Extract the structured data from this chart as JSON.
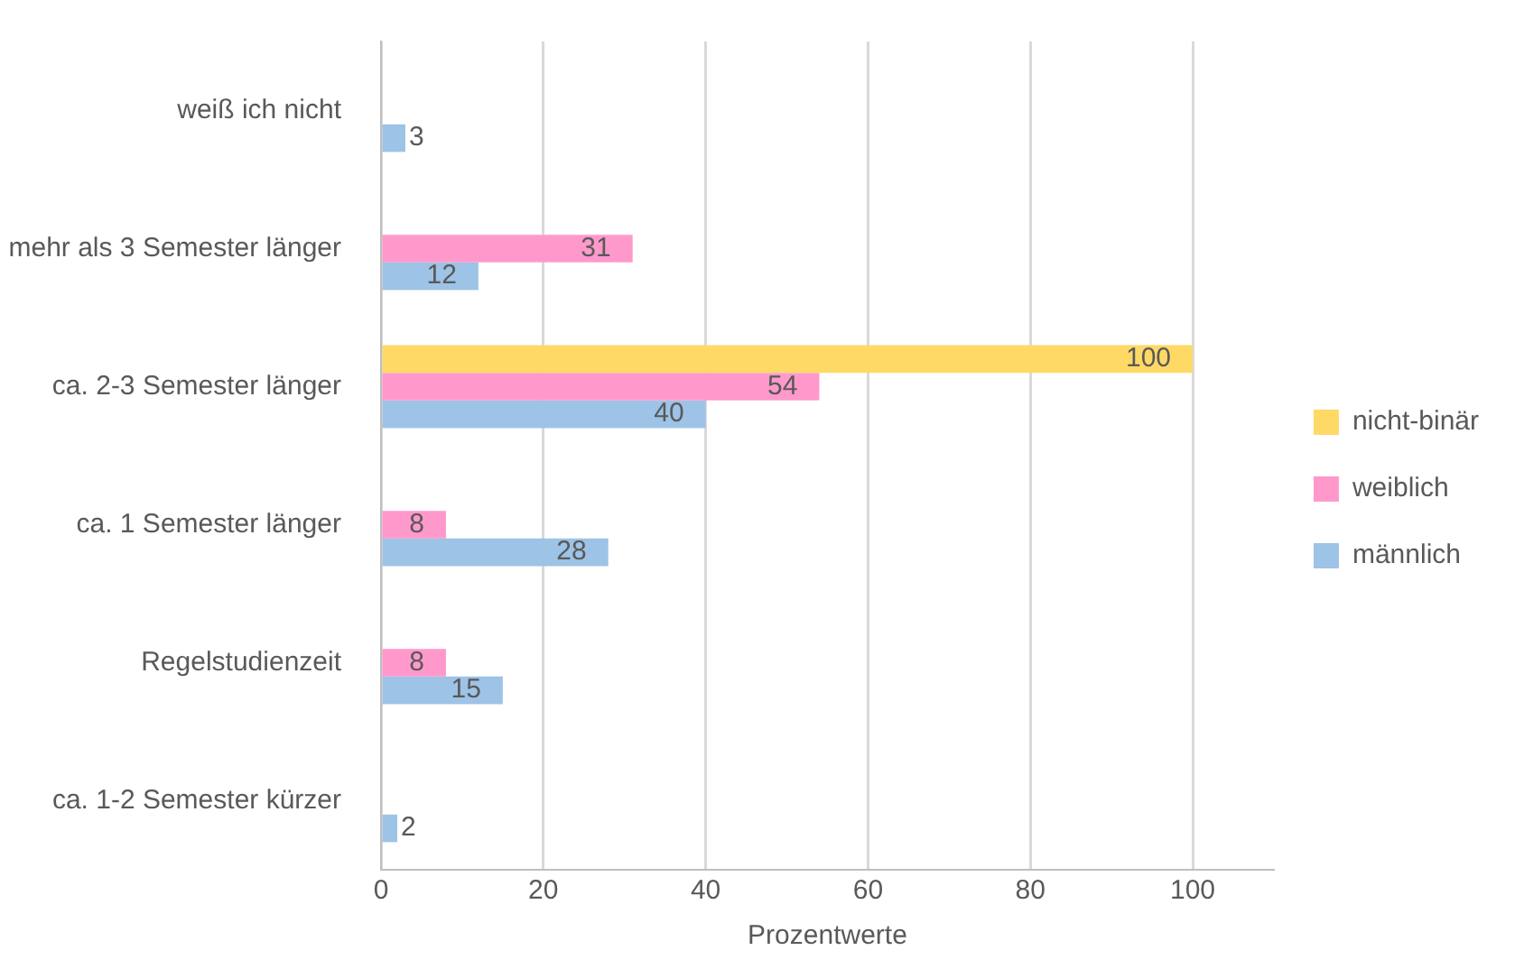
{
  "chart_data": {
    "type": "bar",
    "orientation": "horizontal",
    "xlabel": "Prozentwerte",
    "categories": [
      "weiß ich nicht",
      "mehr als 3 Semester länger",
      "ca. 2-3 Semester länger",
      "ca. 1 Semester länger",
      "Regelstudienzeit",
      "ca. 1-2 Semester kürzer"
    ],
    "series": [
      {
        "name": "nicht-binär",
        "color": "#ffd966",
        "values": [
          null,
          null,
          100,
          null,
          null,
          null
        ]
      },
      {
        "name": "weiblich",
        "color": "#ff99cc",
        "values": [
          null,
          31,
          54,
          8,
          8,
          null
        ]
      },
      {
        "name": "männlich",
        "color": "#9dc3e6",
        "values": [
          3,
          12,
          40,
          28,
          15,
          2
        ]
      }
    ],
    "xlim": [
      0,
      110
    ],
    "xticks": [
      0,
      20,
      40,
      60,
      80,
      100
    ],
    "grid": "x",
    "legend": "right",
    "data_labels": true
  }
}
